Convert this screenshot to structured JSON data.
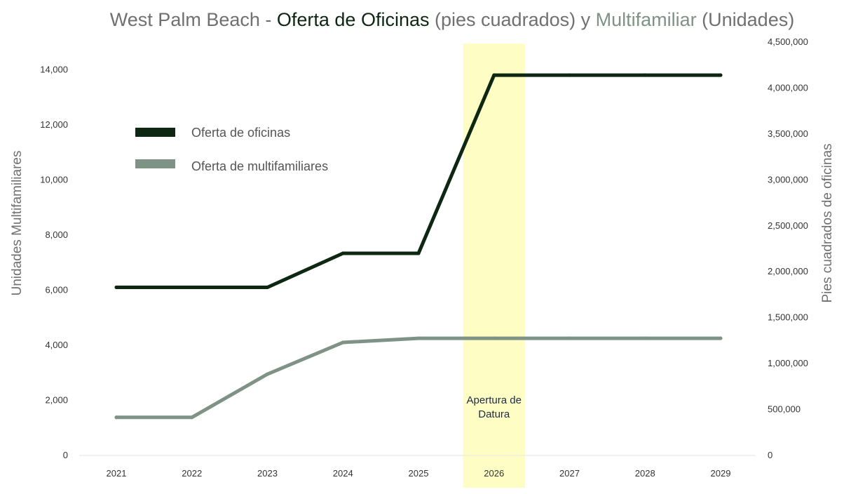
{
  "chart_data": {
    "type": "line",
    "title": {
      "part1": "West Palm Beach - ",
      "part2": "Oferta de Oficinas",
      "part3": " (pies cuadrados) y ",
      "part4": "Multifamiliar",
      "part5": " (Unidades)"
    },
    "title_colors": {
      "base": "#707070",
      "office": "#0e2712",
      "multi": "#7f9286"
    },
    "categories": [
      "2021",
      "2022",
      "2023",
      "2024",
      "2025",
      "2026",
      "2027",
      "2028",
      "2029"
    ],
    "y_left": {
      "label": "Unidades Multifamiliares",
      "range": [
        0,
        15000
      ],
      "ticks": [
        "0",
        "2,000",
        "4,000",
        "6,000",
        "8,000",
        "10,000",
        "12,000",
        "14,000"
      ],
      "tick_values": [
        0,
        2000,
        4000,
        6000,
        8000,
        10000,
        12000,
        14000
      ]
    },
    "y_right": {
      "label": "Pies cuadrados de oficinas",
      "range": [
        0,
        4500000
      ],
      "ticks": [
        "0",
        "500,000",
        "1,000,000",
        "1,500,000",
        "2,000,000",
        "2,500,000",
        "3,000,000",
        "3,500,000",
        "4,000,000",
        "4,500,000"
      ],
      "tick_values": [
        0,
        500000,
        1000000,
        1500000,
        2000000,
        2500000,
        3000000,
        3500000,
        4000000,
        4500000
      ]
    },
    "series": [
      {
        "name": "Oferta de oficinas",
        "axis": "right",
        "color": "#0e2712",
        "values": [
          1830000,
          1830000,
          1830000,
          2200000,
          2200000,
          4140000,
          4140000,
          4140000,
          4140000
        ]
      },
      {
        "name": "Oferta de multifamiliares",
        "axis": "left",
        "color": "#7f9286",
        "values": [
          1380,
          1380,
          2950,
          4100,
          4250,
          4250,
          4250,
          4250,
          4250
        ]
      }
    ],
    "highlight": {
      "category": "2026",
      "color": "#fdfdc4",
      "label_line1": "Apertura de",
      "label_line2": "Datura"
    },
    "legend": "top-left",
    "grid": false
  }
}
